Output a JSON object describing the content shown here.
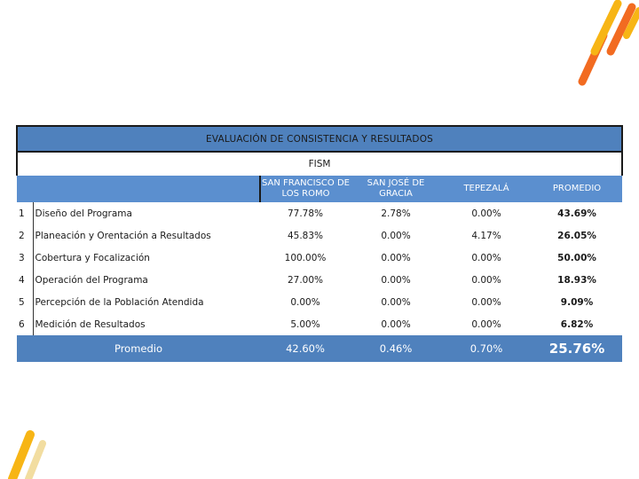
{
  "table": {
    "title": "EVALUACIÓN DE CONSISTENCIA Y RESULTADOS",
    "subtitle": "FISM",
    "columns": [
      "SAN FRANCISCO DE LOS ROMO",
      "SAN JOSÉ DE GRACIA",
      "TEPEZALÁ",
      "PROMEDIO"
    ],
    "rows": [
      {
        "num": "1",
        "name": "Diseño del Programa",
        "values": [
          "77.78%",
          "2.78%",
          "0.00%",
          "43.69%"
        ]
      },
      {
        "num": "2",
        "name": "Planeación y Orentación a Resultados",
        "values": [
          "45.83%",
          "0.00%",
          "4.17%",
          "26.05%"
        ]
      },
      {
        "num": "3",
        "name": "Cobertura y Focalización",
        "values": [
          "100.00%",
          "0.00%",
          "0.00%",
          "50.00%"
        ]
      },
      {
        "num": "4",
        "name": "Operación del Programa",
        "values": [
          "27.00%",
          "0.00%",
          "0.00%",
          "18.93%"
        ]
      },
      {
        "num": "5",
        "name": "Percepción de la Población Atendida",
        "values": [
          "0.00%",
          "0.00%",
          "0.00%",
          "9.09%"
        ]
      },
      {
        "num": "6",
        "name": "Medición de Resultados",
        "values": [
          "5.00%",
          "0.00%",
          "0.00%",
          "6.82%"
        ]
      }
    ],
    "average": {
      "label": "Promedio",
      "values": [
        "42.60%",
        "0.46%",
        "0.70%",
        "25.76%"
      ]
    }
  },
  "colors": {
    "header_blue": "#4f81bd",
    "accent_orange": "#f26b21",
    "accent_yellow": "#f7b515"
  }
}
